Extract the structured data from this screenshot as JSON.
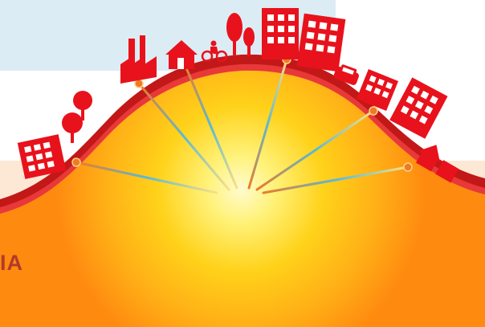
{
  "caption": {
    "text": "IA"
  },
  "colors": {
    "sky_panel": "#dcecf4",
    "page_background": "#ffffff",
    "ground_band": "#ff8a10",
    "pale_band": "#fde8d6",
    "glow_center": "#fff7a0",
    "glow_mid": "#ffd21a",
    "glow_outer": "#ff9c12",
    "crust_dark": "#c21818",
    "crust_light": "#e8383a",
    "city_red": "#e8121c",
    "ray_color": "#5ab9d8",
    "node_color": "#f07a22",
    "caption_color": "#b23a2a"
  },
  "illustration": {
    "subject": "geothermal-heat-beneath-city",
    "ray_count": 6,
    "city_icons": [
      "tree-icon",
      "building-icon",
      "factory-icon",
      "house-icon",
      "cyclist-icon",
      "car-icon"
    ]
  }
}
